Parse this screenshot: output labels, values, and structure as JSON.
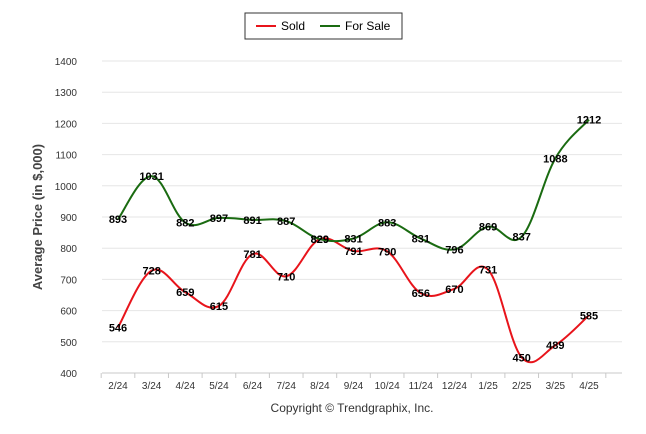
{
  "chart_data": {
    "type": "line",
    "title": "",
    "xlabel": "",
    "ylabel": "Average Price (in $,000)",
    "ylim": [
      400,
      1400
    ],
    "yticks": [
      400,
      500,
      600,
      700,
      800,
      900,
      1000,
      1100,
      1200,
      1300,
      1400
    ],
    "categories": [
      "2/24",
      "3/24",
      "4/24",
      "5/24",
      "6/24",
      "7/24",
      "8/24",
      "9/24",
      "10/24",
      "11/24",
      "12/24",
      "1/25",
      "2/25",
      "3/25",
      "4/25"
    ],
    "series": [
      {
        "name": "Sold",
        "color": "#e8141b",
        "values": [
          546,
          728,
          659,
          615,
          781,
          710,
          829,
          791,
          790,
          656,
          670,
          731,
          450,
          489,
          585
        ]
      },
      {
        "name": "For Sale",
        "color": "#1a6b11",
        "values": [
          893,
          1031,
          882,
          897,
          891,
          887,
          829,
          831,
          883,
          831,
          796,
          869,
          837,
          1088,
          1212
        ]
      }
    ],
    "legend_position": "top-center",
    "grid": "horizontal",
    "footer": "Copyright © Trendgraphix, Inc."
  }
}
